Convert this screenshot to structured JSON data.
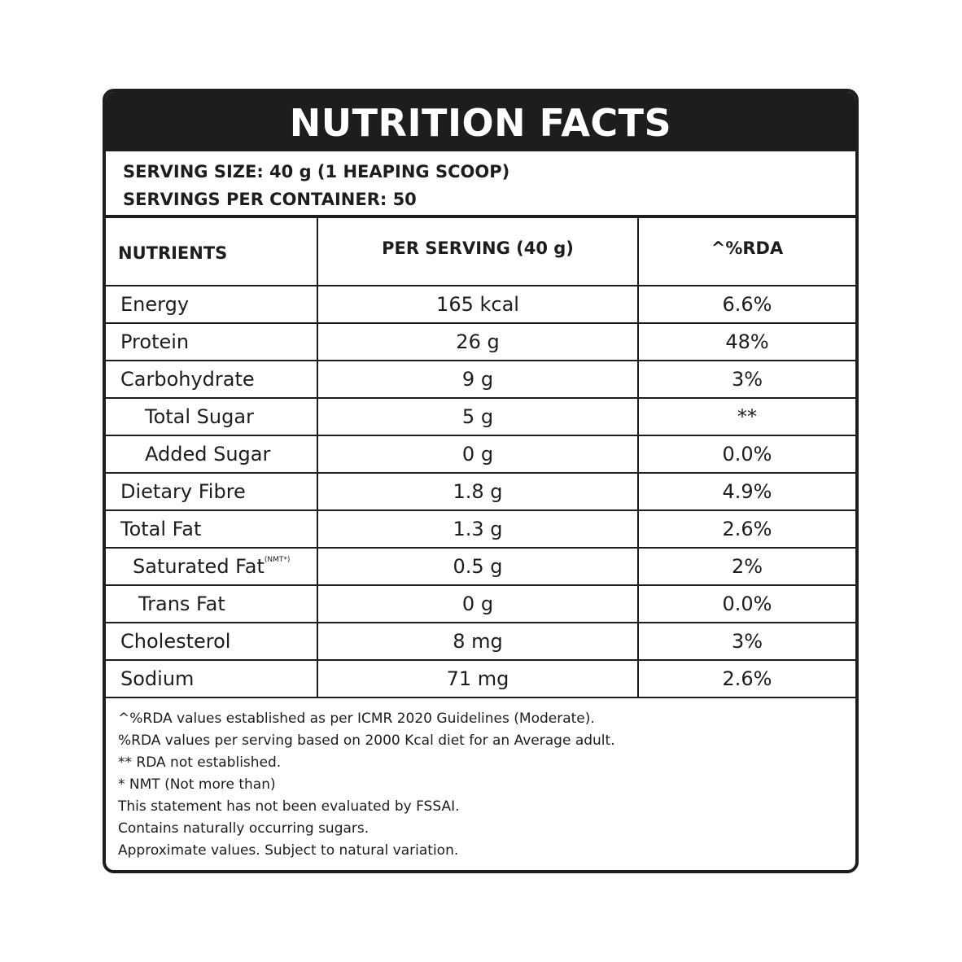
{
  "header": {
    "title": "NUTRITION FACTS"
  },
  "serving": [
    "SERVING SIZE: 40 g (1 HEAPING SCOOP)",
    "SERVINGS PER CONTAINER: 50"
  ],
  "table": {
    "columns": [
      "NUTRIENTS",
      "PER SERVING (40 g)",
      "^%RDA"
    ],
    "rows": [
      [
        "Energy",
        "165 kcal",
        "6.6%"
      ],
      [
        "Protein",
        "26 g",
        "48%"
      ],
      [
        "Carbohydrate",
        "9 g",
        "3%"
      ],
      [
        "Total Sugar",
        "5 g",
        "**"
      ],
      [
        "Added Sugar",
        "0 g",
        "0.0%"
      ],
      [
        "Dietary Fibre",
        "1.8 g",
        "4.9%"
      ],
      [
        "Total Fat",
        "1.3 g",
        "2.6%"
      ],
      [
        {
          "text": "Saturated Fat",
          "sup": "(NMT*)"
        },
        "0.5 g",
        "2%"
      ],
      [
        "Trans Fat",
        "0 g",
        "0.0%"
      ],
      [
        "Cholesterol",
        "8 mg",
        "3%"
      ],
      [
        "Sodium",
        "71 mg",
        "2.6%"
      ]
    ]
  },
  "footnotes": [
    "^%RDA values established as per ICMR 2020 Guidelines (Moderate).",
    "%RDA values per serving based on 2000 Kcal diet  for an Average adult.",
    "** RDA not established.",
    "* NMT (Not more than)",
    "This statement has not been evaluated by FSSAI.",
    "Contains naturally occurring sugars.",
    "Approximate values. Subject to natural variation."
  ]
}
